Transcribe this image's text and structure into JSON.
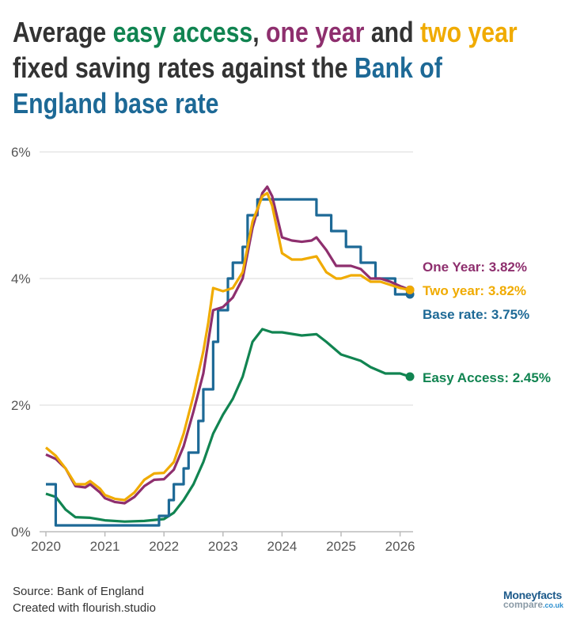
{
  "title": {
    "lines": [
      [
        {
          "text": "Average ",
          "color": "#333333"
        },
        {
          "text": "easy access",
          "color": "#118451"
        },
        {
          "text": ", ",
          "color": "#333333"
        },
        {
          "text": "one year",
          "color": "#8e2f6e"
        },
        {
          "text": " and ",
          "color": "#333333"
        },
        {
          "text": "two year",
          "color": "#f0ab00"
        }
      ],
      [
        {
          "text": "fixed saving rates against the ",
          "color": "#333333"
        },
        {
          "text": "Bank of",
          "color": "#1d6996"
        }
      ],
      [
        {
          "text": "England base rate",
          "color": "#1d6996"
        }
      ]
    ]
  },
  "footer": {
    "source": "Source: Bank of England",
    "credit": "Created with flourish.studio"
  },
  "logo": {
    "line1": "Moneyfacts",
    "line2": "compare",
    "line3": ".co.uk"
  },
  "chart_data": {
    "type": "line",
    "title": "Average easy access, one year and two year fixed saving rates against the Bank of England base rate",
    "xlabel": "",
    "ylabel": "",
    "xlim": [
      "2020-01",
      "2026-03"
    ],
    "ylim": [
      0,
      6
    ],
    "x_ticks": [
      "2020",
      "2021",
      "2022",
      "2023",
      "2024",
      "2025",
      "2026"
    ],
    "y_ticks": [
      {
        "value": 0,
        "label": "0%"
      },
      {
        "value": 2,
        "label": "2%"
      },
      {
        "value": 4,
        "label": "4%"
      },
      {
        "value": 6,
        "label": "6%"
      }
    ],
    "grid": true,
    "legend": "end-labels",
    "series": [
      {
        "name": "One Year",
        "label": "One Year: 3.82%",
        "color": "#8e2f6e",
        "step": false,
        "points": [
          [
            "2020-01",
            1.22
          ],
          [
            "2020-03",
            1.15
          ],
          [
            "2020-05",
            1.0
          ],
          [
            "2020-07",
            0.72
          ],
          [
            "2020-09",
            0.7
          ],
          [
            "2020-10",
            0.75
          ],
          [
            "2020-12",
            0.62
          ],
          [
            "2021-01",
            0.53
          ],
          [
            "2021-03",
            0.47
          ],
          [
            "2021-05",
            0.45
          ],
          [
            "2021-07",
            0.55
          ],
          [
            "2021-09",
            0.72
          ],
          [
            "2021-11",
            0.82
          ],
          [
            "2022-01",
            0.83
          ],
          [
            "2022-03",
            0.98
          ],
          [
            "2022-05",
            1.35
          ],
          [
            "2022-07",
            1.9
          ],
          [
            "2022-09",
            2.5
          ],
          [
            "2022-11",
            3.5
          ],
          [
            "2023-01",
            3.55
          ],
          [
            "2023-03",
            3.7
          ],
          [
            "2023-05",
            4.0
          ],
          [
            "2023-07",
            4.8
          ],
          [
            "2023-09",
            5.35
          ],
          [
            "2023-10",
            5.45
          ],
          [
            "2023-11",
            5.3
          ],
          [
            "2024-01",
            4.65
          ],
          [
            "2024-03",
            4.6
          ],
          [
            "2024-05",
            4.58
          ],
          [
            "2024-07",
            4.6
          ],
          [
            "2024-08",
            4.65
          ],
          [
            "2024-10",
            4.45
          ],
          [
            "2024-12",
            4.2
          ],
          [
            "2025-01",
            4.2
          ],
          [
            "2025-03",
            4.2
          ],
          [
            "2025-05",
            4.15
          ],
          [
            "2025-07",
            4.0
          ],
          [
            "2025-09",
            4.0
          ],
          [
            "2025-11",
            3.95
          ],
          [
            "2026-01",
            3.88
          ],
          [
            "2026-03",
            3.82
          ]
        ]
      },
      {
        "name": "Two year",
        "label": "Two year: 3.82%",
        "color": "#f0ab00",
        "step": false,
        "points": [
          [
            "2020-01",
            1.33
          ],
          [
            "2020-03",
            1.2
          ],
          [
            "2020-05",
            1.0
          ],
          [
            "2020-07",
            0.75
          ],
          [
            "2020-09",
            0.75
          ],
          [
            "2020-10",
            0.8
          ],
          [
            "2020-12",
            0.68
          ],
          [
            "2021-01",
            0.58
          ],
          [
            "2021-03",
            0.52
          ],
          [
            "2021-05",
            0.5
          ],
          [
            "2021-07",
            0.62
          ],
          [
            "2021-09",
            0.82
          ],
          [
            "2021-11",
            0.92
          ],
          [
            "2022-01",
            0.93
          ],
          [
            "2022-03",
            1.1
          ],
          [
            "2022-05",
            1.55
          ],
          [
            "2022-07",
            2.15
          ],
          [
            "2022-09",
            2.85
          ],
          [
            "2022-10",
            3.3
          ],
          [
            "2022-11",
            3.85
          ],
          [
            "2023-01",
            3.8
          ],
          [
            "2023-03",
            3.85
          ],
          [
            "2023-05",
            4.1
          ],
          [
            "2023-07",
            4.9
          ],
          [
            "2023-09",
            5.3
          ],
          [
            "2023-10",
            5.35
          ],
          [
            "2023-11",
            5.15
          ],
          [
            "2024-01",
            4.4
          ],
          [
            "2024-03",
            4.3
          ],
          [
            "2024-05",
            4.3
          ],
          [
            "2024-08",
            4.35
          ],
          [
            "2024-10",
            4.1
          ],
          [
            "2024-12",
            4.0
          ],
          [
            "2025-01",
            4.0
          ],
          [
            "2025-03",
            4.05
          ],
          [
            "2025-05",
            4.05
          ],
          [
            "2025-07",
            3.95
          ],
          [
            "2025-09",
            3.95
          ],
          [
            "2025-11",
            3.9
          ],
          [
            "2026-01",
            3.85
          ],
          [
            "2026-03",
            3.82
          ]
        ]
      },
      {
        "name": "Base rate",
        "label": "Base rate: 3.75%",
        "color": "#1d6996",
        "step": true,
        "points": [
          [
            "2020-01",
            0.75
          ],
          [
            "2020-03",
            0.25
          ],
          [
            "2020-03",
            0.1
          ],
          [
            "2021-12",
            0.25
          ],
          [
            "2022-02",
            0.5
          ],
          [
            "2022-03",
            0.75
          ],
          [
            "2022-05",
            1.0
          ],
          [
            "2022-06",
            1.25
          ],
          [
            "2022-08",
            1.75
          ],
          [
            "2022-09",
            2.25
          ],
          [
            "2022-11",
            3.0
          ],
          [
            "2022-12",
            3.5
          ],
          [
            "2023-02",
            4.0
          ],
          [
            "2023-03",
            4.25
          ],
          [
            "2023-05",
            4.5
          ],
          [
            "2023-06",
            5.0
          ],
          [
            "2023-08",
            5.25
          ],
          [
            "2024-08",
            5.0
          ],
          [
            "2024-11",
            4.75
          ],
          [
            "2025-02",
            4.5
          ],
          [
            "2025-05",
            4.25
          ],
          [
            "2025-08",
            4.0
          ],
          [
            "2025-12",
            3.75
          ],
          [
            "2026-03",
            3.75
          ]
        ]
      },
      {
        "name": "Easy Access",
        "label": "Easy Access: 2.45%",
        "color": "#118451",
        "step": false,
        "points": [
          [
            "2020-01",
            0.6
          ],
          [
            "2020-03",
            0.55
          ],
          [
            "2020-05",
            0.35
          ],
          [
            "2020-07",
            0.23
          ],
          [
            "2020-10",
            0.22
          ],
          [
            "2021-01",
            0.18
          ],
          [
            "2021-05",
            0.16
          ],
          [
            "2021-09",
            0.17
          ],
          [
            "2022-01",
            0.2
          ],
          [
            "2022-03",
            0.3
          ],
          [
            "2022-05",
            0.5
          ],
          [
            "2022-07",
            0.75
          ],
          [
            "2022-09",
            1.1
          ],
          [
            "2022-11",
            1.55
          ],
          [
            "2023-01",
            1.85
          ],
          [
            "2023-03",
            2.1
          ],
          [
            "2023-05",
            2.45
          ],
          [
            "2023-07",
            3.0
          ],
          [
            "2023-09",
            3.2
          ],
          [
            "2023-11",
            3.15
          ],
          [
            "2024-01",
            3.15
          ],
          [
            "2024-05",
            3.1
          ],
          [
            "2024-08",
            3.12
          ],
          [
            "2024-10",
            3.0
          ],
          [
            "2025-01",
            2.8
          ],
          [
            "2025-05",
            2.7
          ],
          [
            "2025-07",
            2.6
          ],
          [
            "2025-10",
            2.5
          ],
          [
            "2026-01",
            2.5
          ],
          [
            "2026-03",
            2.45
          ]
        ]
      }
    ]
  }
}
